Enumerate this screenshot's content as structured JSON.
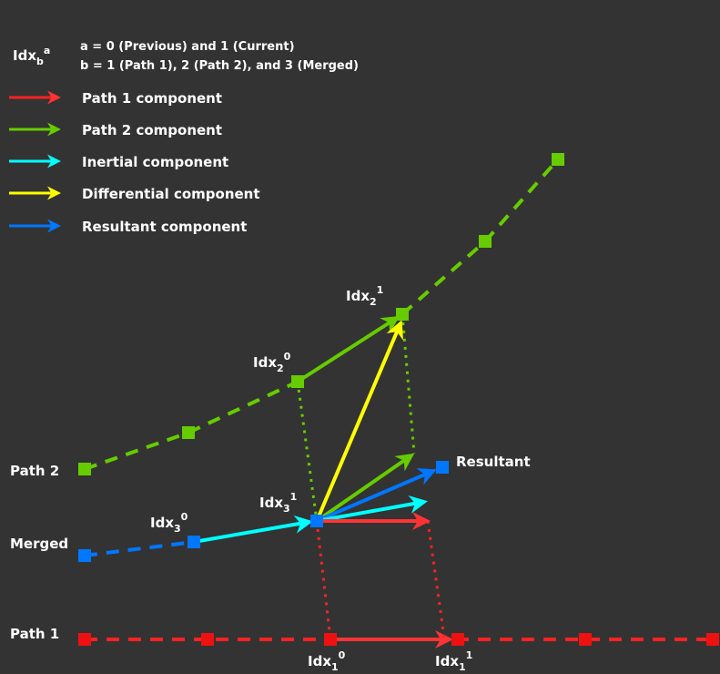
{
  "colors": {
    "background": "#333333",
    "path1": "#ff2222",
    "path2": "#66cc00",
    "inertial": "#00ffff",
    "differential": "#ffff00",
    "resultant": "#0077ff",
    "text": "#ffffff"
  },
  "header": {
    "symbol_base": "Idx",
    "symbol_sub": "b",
    "symbol_sup": "a",
    "def_a": "a = 0 (Previous) and 1 (Current)",
    "def_b": "b = 1 (Path 1), 2 (Path 2), and 3 (Merged)"
  },
  "legend": {
    "items": [
      {
        "key": "path1",
        "label": "Path 1 component"
      },
      {
        "key": "path2",
        "label": "Path 2 component"
      },
      {
        "key": "inertial",
        "label": "Inertial component"
      },
      {
        "key": "differential",
        "label": "Differential component"
      },
      {
        "key": "resultant",
        "label": "Resultant component"
      }
    ]
  },
  "rows": {
    "path2": "Path 2",
    "merged": "Merged",
    "path1": "Path 1"
  },
  "points": {
    "idx2_0": {
      "base": "Idx",
      "sub": "2",
      "sup": "0"
    },
    "idx2_1": {
      "base": "Idx",
      "sub": "2",
      "sup": "1"
    },
    "idx3_0": {
      "base": "Idx",
      "sub": "3",
      "sup": "0"
    },
    "idx3_1": {
      "base": "Idx",
      "sub": "3",
      "sup": "1"
    },
    "idx1_0": {
      "base": "Idx",
      "sub": "1",
      "sup": "0"
    },
    "idx1_1": {
      "base": "Idx",
      "sub": "1",
      "sup": "1"
    }
  },
  "resultant_label": "Resultant"
}
